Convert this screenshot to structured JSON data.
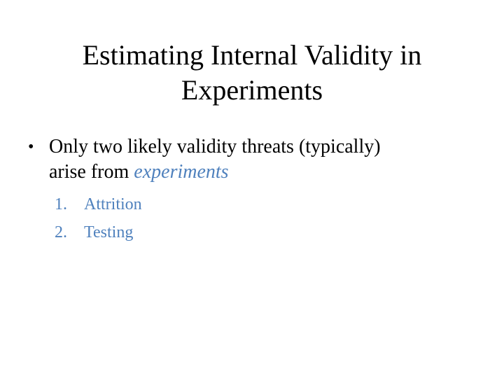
{
  "slide": {
    "title_line1": "Estimating Internal Validity in",
    "title_line2": "Experiments",
    "bullet": {
      "marker": "•",
      "text_line1": "Only two likely validity threats (typically)",
      "text_line2_prefix": "arise from ",
      "text_line2_emphasis": "experiments"
    },
    "sublist": [
      {
        "number": "1.",
        "label": "Attrition"
      },
      {
        "number": "2.",
        "label": "Testing"
      }
    ],
    "colors": {
      "accent": "#4f81bd",
      "text": "#000000",
      "background": "#ffffff"
    }
  }
}
